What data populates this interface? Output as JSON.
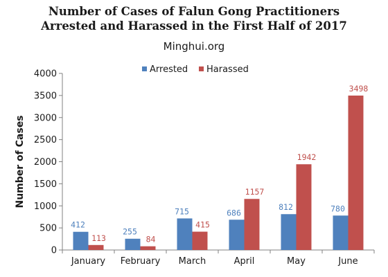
{
  "chart_data": {
    "type": "bar",
    "title": [
      "Number of Cases of Falun Gong Practitioners",
      "Arrested and Harassed in the First Half of 2017"
    ],
    "subtitle": "Minghui.org",
    "ylabel": "Number of Cases",
    "xlabel": "",
    "ylim": [
      0,
      4000
    ],
    "yticks": [
      0,
      500,
      1000,
      1500,
      2000,
      2500,
      3000,
      3500,
      4000
    ],
    "grid": false,
    "legend_position": "top-center",
    "categories": [
      "January",
      "February",
      "March",
      "April",
      "May",
      "June"
    ],
    "series": [
      {
        "name": "Arrested",
        "color": "#4f81bd",
        "label_color": "#4f81bd",
        "values": [
          412,
          255,
          715,
          686,
          812,
          780
        ]
      },
      {
        "name": "Harassed",
        "color": "#c0504d",
        "label_color": "#c0504d",
        "values": [
          113,
          84,
          415,
          1157,
          1942,
          3498
        ]
      }
    ]
  }
}
